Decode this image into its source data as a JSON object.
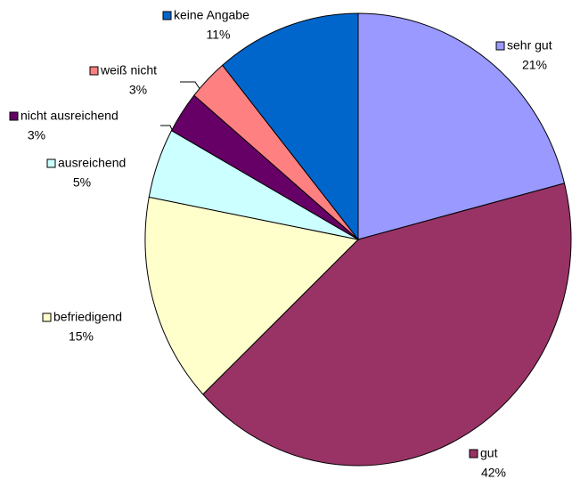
{
  "chart_data": {
    "type": "pie",
    "categories": [
      "sehr gut",
      "gut",
      "befriedigend",
      "ausreichend",
      "nicht ausreichend",
      "weiß nicht",
      "keine Angabe"
    ],
    "values": [
      21,
      42,
      15,
      5,
      3,
      3,
      11
    ],
    "value_labels": [
      "21%",
      "42%",
      "15%",
      "5%",
      "3%",
      "3%",
      "11%"
    ],
    "colors": [
      "#9999ff",
      "#993366",
      "#ffffcc",
      "#ccffff",
      "#660066",
      "#ff8080",
      "#0066cc"
    ]
  }
}
